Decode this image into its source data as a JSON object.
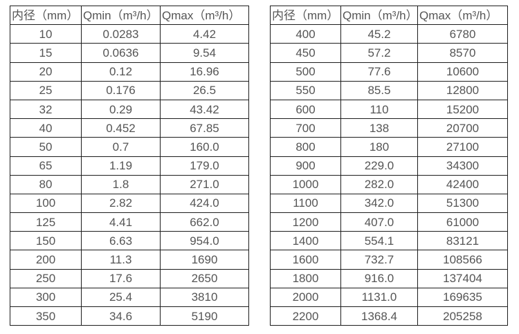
{
  "colors": {
    "background": "#ffffff",
    "border": "#1c1c1c",
    "text": "#555555"
  },
  "tables": [
    {
      "name": "small-diameter-table",
      "header": [
        "内径（mm）",
        "Qmin（m³/h）",
        "Qmax（m³/h）"
      ],
      "rows": [
        [
          "10",
          "0.0283",
          "4.42"
        ],
        [
          "15",
          "0.0636",
          "9.54"
        ],
        [
          "20",
          "0.12",
          "16.96"
        ],
        [
          "25",
          "0.176",
          "26.5"
        ],
        [
          "32",
          "0.29",
          "43.42"
        ],
        [
          "40",
          "0.452",
          "67.85"
        ],
        [
          "50",
          "0.7",
          "160.0"
        ],
        [
          "65",
          "1.19",
          "179.0"
        ],
        [
          "80",
          "1.8",
          "271.0"
        ],
        [
          "100",
          "2.82",
          "424.0"
        ],
        [
          "125",
          "4.41",
          "662.0"
        ],
        [
          "150",
          "6.63",
          "954.0"
        ],
        [
          "200",
          "11.3",
          "1690"
        ],
        [
          "250",
          "17.6",
          "2650"
        ],
        [
          "300",
          "25.4",
          "3810"
        ],
        [
          "350",
          "34.6",
          "5190"
        ]
      ]
    },
    {
      "name": "large-diameter-table",
      "header": [
        "内径（mm）",
        "Qmin（m³/h）",
        "Qmax（m³/h）"
      ],
      "rows": [
        [
          "400",
          "45.2",
          "6780"
        ],
        [
          "450",
          "57.2",
          "8570"
        ],
        [
          "500",
          "77.6",
          "10600"
        ],
        [
          "550",
          "85.5",
          "12800"
        ],
        [
          "600",
          "110",
          "15200"
        ],
        [
          "700",
          "138",
          "20700"
        ],
        [
          "800",
          "180",
          "27100"
        ],
        [
          "900",
          "229.0",
          "34300"
        ],
        [
          "1000",
          "282.0",
          "42400"
        ],
        [
          "1100",
          "342.0",
          "51300"
        ],
        [
          "1200",
          "407.0",
          "61000"
        ],
        [
          "1400",
          "554.1",
          "83121"
        ],
        [
          "1600",
          "732.7",
          "108566"
        ],
        [
          "1800",
          "916.0",
          "137404"
        ],
        [
          "2000",
          "1131.0",
          "169635"
        ],
        [
          "2200",
          "1368.4",
          "205258"
        ]
      ]
    }
  ]
}
